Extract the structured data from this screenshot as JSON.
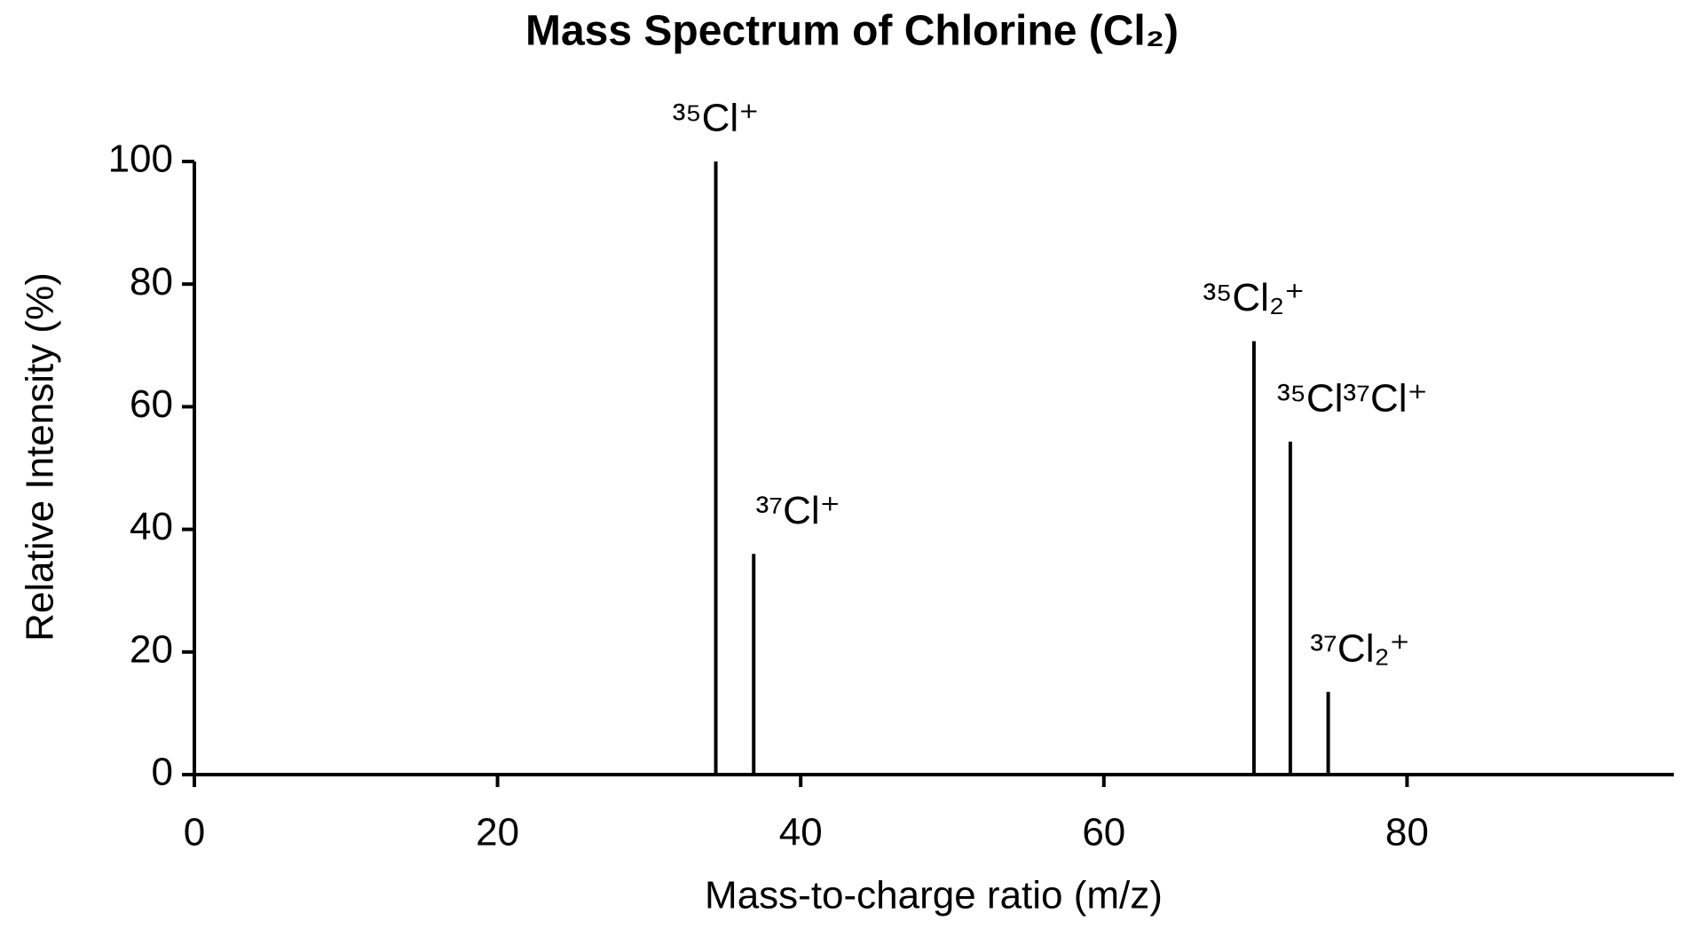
{
  "chart_data": {
    "type": "stem",
    "title": "Mass Spectrum of Chlorine (Cl₂)",
    "x_label": "Mass-to-charge ratio (m/z)",
    "y_label": "Relative Intensity (%)",
    "x": [
      34.4,
      36.9,
      69.9,
      72.3,
      74.8
    ],
    "values": [
      100,
      36,
      70.7,
      54.3,
      13.5
    ],
    "labels": [
      "³⁵Cl⁺",
      "³⁷Cl⁺",
      "³⁵Cl₂⁺",
      "³⁵Cl³⁷Cl⁺",
      "³⁷Cl₂⁺"
    ],
    "color": "#000000",
    "xlim": [
      0,
      97.6
    ],
    "xticks": [
      0,
      20,
      40,
      60,
      80
    ],
    "ylim": [
      0,
      100
    ],
    "yticks": [
      0,
      20,
      40,
      60,
      80,
      100
    ],
    "grid": false
  }
}
